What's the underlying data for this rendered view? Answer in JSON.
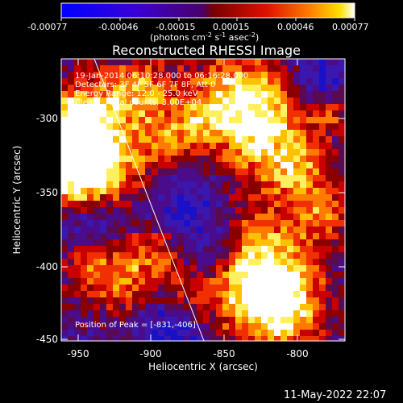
{
  "colorbar": {
    "ticks": [
      "-0.00077",
      "-0.00046",
      "-0.00015",
      "0.00015",
      "0.00046",
      "0.00077"
    ],
    "units": "(photons cm",
    "units_sup1": "-2",
    "units_mid": " s",
    "units_sup2": "-1",
    "units_end": " asec",
    "units_sup3": "-2",
    "units_close": ")",
    "range": [
      -0.00077,
      0.00077
    ]
  },
  "title": "Reconstructed RHESSI Image",
  "annotations": {
    "time": "19-Jan-2014 06:10:28.000 to 06:16:28.000",
    "detectors": "Detectors: 3F 4F 5F 6F 7F 8F, Att 0",
    "energy": "Energy Range: 12.0 - 25.0 keV",
    "clean": "Clean    Total counts: 3.00E+04",
    "peak": "Position of Peak = [-831,-406]"
  },
  "axes": {
    "xlabel": "Heliocentric X (arcsec)",
    "ylabel": "Heliocentric Y (arcsec)",
    "xticks": [
      "-950",
      "-900",
      "-850",
      "-800"
    ],
    "yticks": [
      "-300",
      "-350",
      "-400",
      "-450"
    ]
  },
  "footer": {
    "date": "11-May-2022 22:07"
  },
  "chart_data": {
    "type": "heatmap",
    "title": "Reconstructed RHESSI Image",
    "xlabel": "Heliocentric X (arcsec)",
    "ylabel": "Heliocentric Y (arcsec)",
    "xlim": [
      -965,
      -770
    ],
    "ylim": [
      -451,
      -273
    ],
    "colormap": "blue-purple-red-yellow-white",
    "value_range": [
      -0.00077,
      0.00077
    ],
    "peak": {
      "x": -831,
      "y": -406
    },
    "grid": false,
    "limb_line": true
  }
}
